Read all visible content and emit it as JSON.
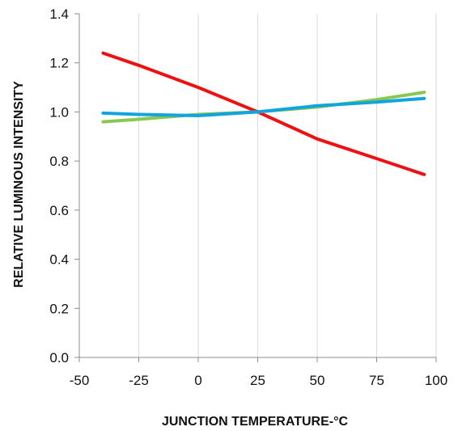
{
  "chart_data": {
    "type": "line",
    "xlabel": "JUNCTION TEMPERATURE-°C",
    "ylabel": "RELATIVE LUMINOUS INTENSITY",
    "xlim": [
      -50,
      100
    ],
    "ylim": [
      0.0,
      1.4
    ],
    "x_ticks": [
      "-50",
      "-25",
      "0",
      "25",
      "50",
      "75",
      "100"
    ],
    "y_ticks": [
      "0.0",
      "0.2",
      "0.4",
      "0.6",
      "0.8",
      "1.0",
      "1.2",
      "1.4"
    ],
    "grid": "vertical",
    "legend": "none",
    "series": [
      {
        "color": "#ee1111",
        "x": [
          -40,
          -25,
          0,
          25,
          50,
          75,
          95
        ],
        "y": [
          1.24,
          1.19,
          1.1,
          1.0,
          0.89,
          0.81,
          0.745
        ]
      },
      {
        "color": "#88c850",
        "x": [
          -40,
          -25,
          0,
          25,
          50,
          75,
          95
        ],
        "y": [
          0.96,
          0.97,
          0.99,
          1.0,
          1.02,
          1.05,
          1.08
        ]
      },
      {
        "color": "#11a5e0",
        "x": [
          -40,
          -25,
          0,
          25,
          50,
          75,
          95
        ],
        "y": [
          0.995,
          0.99,
          0.985,
          1.0,
          1.025,
          1.04,
          1.055
        ]
      }
    ]
  }
}
